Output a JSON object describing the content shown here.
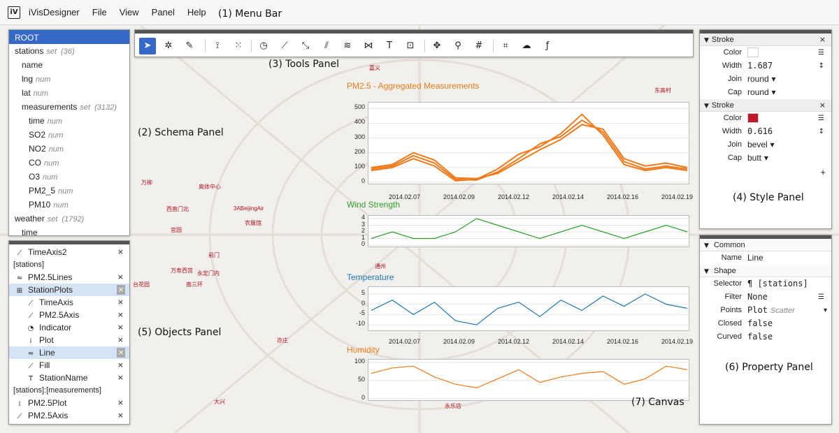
{
  "menubar": {
    "logo": "iV",
    "title": "iVisDesigner",
    "items": [
      "File",
      "View",
      "Panel",
      "Help"
    ]
  },
  "annotations": {
    "menu_bar": "(1) Menu Bar",
    "schema_panel": "(2) Schema Panel",
    "tools_panel": "(3) Tools Panel",
    "style_panel": "(4) Style Panel",
    "objects_panel": "(5) Objects Panel",
    "property_panel": "(6) Property Panel",
    "canvas": "(7) Canvas"
  },
  "schema": {
    "root": "ROOT",
    "rows": [
      {
        "name": "stations",
        "type": "set",
        "count": "(36)",
        "depth": 0
      },
      {
        "name": "name",
        "type": "",
        "count": "",
        "depth": 1
      },
      {
        "name": "lng",
        "type": "num",
        "count": "",
        "depth": 1
      },
      {
        "name": "lat",
        "type": "num",
        "count": "",
        "depth": 1
      },
      {
        "name": "measurements",
        "type": "set",
        "count": "(3132)",
        "depth": 1
      },
      {
        "name": "time",
        "type": "num",
        "count": "",
        "depth": 2
      },
      {
        "name": "SO2",
        "type": "num",
        "count": "",
        "depth": 2
      },
      {
        "name": "NO2",
        "type": "num",
        "count": "",
        "depth": 2
      },
      {
        "name": "CO",
        "type": "num",
        "count": "",
        "depth": 2
      },
      {
        "name": "O3",
        "type": "num",
        "count": "",
        "depth": 2
      },
      {
        "name": "PM2_5",
        "type": "num",
        "count": "",
        "depth": 2
      },
      {
        "name": "PM10",
        "type": "num",
        "count": "",
        "depth": 2
      },
      {
        "name": "weather",
        "type": "set",
        "count": "(1792)",
        "depth": 0
      },
      {
        "name": "time",
        "type": "",
        "count": "",
        "depth": 1
      }
    ]
  },
  "objects": {
    "items": [
      {
        "kind": "row",
        "icon": "axis-icon",
        "glyph": "⟋",
        "label": "TimeAxis2",
        "depth": 1,
        "selected": false
      },
      {
        "kind": "group",
        "label": "[stations]"
      },
      {
        "kind": "row",
        "icon": "line-icon",
        "glyph": "≈",
        "label": "PM2.5Lines",
        "depth": 1,
        "selected": false
      },
      {
        "kind": "row",
        "icon": "plot-group-icon",
        "glyph": "⊞",
        "label": "StationPlots",
        "depth": 1,
        "selected": true
      },
      {
        "kind": "row",
        "icon": "axis-icon",
        "glyph": "⟋",
        "label": "TimeAxis",
        "depth": 2,
        "selected": false
      },
      {
        "kind": "row",
        "icon": "axis-icon",
        "glyph": "⟋",
        "label": "PM2.5Axis",
        "depth": 2,
        "selected": false
      },
      {
        "kind": "row",
        "icon": "indicator-icon",
        "glyph": "◔",
        "label": "Indicator",
        "depth": 2,
        "selected": false
      },
      {
        "kind": "row",
        "icon": "plot-icon",
        "glyph": "⁞",
        "label": "Plot",
        "depth": 2,
        "selected": false
      },
      {
        "kind": "row",
        "icon": "line-icon",
        "glyph": "≈",
        "label": "Line",
        "depth": 2,
        "selected": true
      },
      {
        "kind": "row",
        "icon": "fill-icon",
        "glyph": "⟋",
        "label": "Fill",
        "depth": 2,
        "selected": false
      },
      {
        "kind": "row",
        "icon": "text-icon",
        "glyph": "T",
        "label": "StationName",
        "depth": 2,
        "selected": false
      },
      {
        "kind": "group",
        "label": "[stations]:[measurements]"
      },
      {
        "kind": "row",
        "icon": "plot-icon",
        "glyph": "⁞",
        "label": "PM2.5Plot",
        "depth": 1,
        "selected": false
      },
      {
        "kind": "row",
        "icon": "axis-icon",
        "glyph": "⟋",
        "label": "PM2.5Axis",
        "depth": 1,
        "selected": false
      }
    ],
    "close_glyph": "×"
  },
  "tools": [
    {
      "name": "select-tool",
      "icon": "cursor-icon",
      "glyph": "➤",
      "active": true
    },
    {
      "name": "move-element-tool",
      "icon": "magic-wand-icon",
      "glyph": "✲",
      "active": false
    },
    {
      "name": "brush-tool",
      "icon": "brush-icon",
      "glyph": "✎",
      "active": false
    },
    {
      "name": "axis-tool",
      "icon": "axis-icon",
      "glyph": "⟟",
      "active": false
    },
    {
      "name": "scatter-tool",
      "icon": "scatter-icon",
      "glyph": "⁙",
      "active": false
    },
    {
      "name": "gauge-tool",
      "icon": "gauge-icon",
      "glyph": "◷",
      "active": false
    },
    {
      "name": "line-tool",
      "icon": "line-segment-icon",
      "glyph": "⟋",
      "active": false
    },
    {
      "name": "polyline-tool",
      "icon": "polyline-icon",
      "glyph": "⤡",
      "active": false
    },
    {
      "name": "bar-tool",
      "icon": "bar-icon",
      "glyph": "⫽",
      "active": false
    },
    {
      "name": "curve-tool",
      "icon": "curve-icon",
      "glyph": "≋",
      "active": false
    },
    {
      "name": "area-tool",
      "icon": "area-icon",
      "glyph": "⋈",
      "active": false
    },
    {
      "name": "text-tool",
      "icon": "text-icon",
      "glyph": "T",
      "active": false
    },
    {
      "name": "component-tool",
      "icon": "component-icon",
      "glyph": "⊡",
      "active": false
    },
    {
      "name": "pan-tool",
      "icon": "move-icon",
      "glyph": "✥",
      "active": false
    },
    {
      "name": "zoom-tool",
      "icon": "search-icon",
      "glyph": "⚲",
      "active": false
    },
    {
      "name": "grid-tool",
      "icon": "grid-icon",
      "glyph": "#",
      "active": false
    },
    {
      "name": "layout-tool",
      "icon": "layout-icon",
      "glyph": "⌗",
      "active": false
    },
    {
      "name": "map-tool",
      "icon": "map-icon",
      "glyph": "☁",
      "active": false
    },
    {
      "name": "expression-tool",
      "icon": "function-icon",
      "glyph": "ƒ",
      "active": false
    }
  ],
  "style_panel": {
    "sections": [
      {
        "title": "Stroke",
        "color": "#ffffff",
        "width": "1.687",
        "join": "round",
        "cap": "round"
      },
      {
        "title": "Stroke",
        "color": "#c0172b",
        "width": "0.616",
        "join": "bevel",
        "cap": "butt"
      }
    ],
    "labels": {
      "color": "Color",
      "width": "Width",
      "join": "Join",
      "cap": "Cap"
    },
    "add_glyph": "+"
  },
  "property_panel": {
    "common_title": "Common",
    "name_label": "Name",
    "name_value": "Line",
    "shape_title": "Shape",
    "rows": [
      {
        "label": "Selector",
        "value": "¶ [stations]",
        "hint": ""
      },
      {
        "label": "Filter",
        "value": "None",
        "hint": ""
      },
      {
        "label": "Points",
        "value": "Plot",
        "hint": "Scatter"
      },
      {
        "label": "Closed",
        "value": "false",
        "hint": ""
      },
      {
        "label": "Curved",
        "value": "false",
        "hint": ""
      }
    ]
  },
  "canvas": {
    "dates": [
      "2014.02.07",
      "2014.02.09",
      "2014.02.12",
      "2014.02.14",
      "2014.02.16",
      "2014.02.19"
    ],
    "map_labels": [
      "嘉义",
      "东高村",
      "万柳",
      "奥体中心",
      "西直门北",
      "3ABeijingAir",
      "农展馆",
      "官园",
      "前门",
      "万寿西宫",
      "永定门内",
      "南三环",
      "台花园",
      "通州",
      "亦庄",
      "大兴",
      "永乐店"
    ]
  },
  "chart_data": [
    {
      "type": "line",
      "title": "PM2.5 - Aggregated Measurements",
      "color": "#f07a1a",
      "ylim": [
        0,
        520
      ],
      "yticks": [
        0,
        100,
        200,
        300,
        400,
        500
      ],
      "x": [
        "2014.02.05",
        "2014.02.06",
        "2014.02.07",
        "2014.02.08",
        "2014.02.09",
        "2014.02.10",
        "2014.02.11",
        "2014.02.12",
        "2014.02.13",
        "2014.02.14",
        "2014.02.15",
        "2014.02.16",
        "2014.02.17",
        "2014.02.18",
        "2014.02.19",
        "2014.02.20"
      ],
      "series": [
        {
          "values": [
            90,
            110,
            180,
            130,
            20,
            15,
            70,
            160,
            260,
            310,
            420,
            340,
            140,
            90,
            110,
            90
          ]
        },
        {
          "values": [
            80,
            100,
            160,
            110,
            10,
            20,
            90,
            190,
            240,
            330,
            460,
            320,
            120,
            80,
            100,
            80
          ]
        },
        {
          "values": [
            100,
            120,
            200,
            150,
            30,
            25,
            60,
            140,
            220,
            290,
            390,
            360,
            160,
            110,
            130,
            100
          ]
        }
      ]
    },
    {
      "type": "line",
      "title": "Wind Strength",
      "color": "#2ca02c",
      "ylim": [
        0,
        4
      ],
      "yticks": [
        0,
        1,
        2,
        3,
        4
      ],
      "x": [
        "2014.02.05",
        "2014.02.06",
        "2014.02.07",
        "2014.02.08",
        "2014.02.09",
        "2014.02.10",
        "2014.02.11",
        "2014.02.12",
        "2014.02.13",
        "2014.02.14",
        "2014.02.15",
        "2014.02.16",
        "2014.02.17",
        "2014.02.18",
        "2014.02.19",
        "2014.02.20"
      ],
      "series": [
        {
          "values": [
            1,
            2,
            1,
            1,
            2,
            4,
            3,
            2,
            1,
            2,
            3,
            2,
            1,
            2,
            3,
            2
          ]
        }
      ]
    },
    {
      "type": "line",
      "title": "Temperature",
      "color": "#1f77b4",
      "ylim": [
        -12,
        7
      ],
      "yticks": [
        -10,
        -5,
        0,
        5
      ],
      "x": [
        "2014.02.05",
        "2014.02.06",
        "2014.02.07",
        "2014.02.08",
        "2014.02.09",
        "2014.02.10",
        "2014.02.11",
        "2014.02.12",
        "2014.02.13",
        "2014.02.14",
        "2014.02.15",
        "2014.02.16",
        "2014.02.17",
        "2014.02.18",
        "2014.02.19",
        "2014.02.20"
      ],
      "series": [
        {
          "values": [
            -3,
            2,
            -5,
            1,
            -8,
            -10,
            -2,
            1,
            -6,
            2,
            -3,
            4,
            -1,
            5,
            0,
            -2
          ]
        }
      ]
    },
    {
      "type": "line",
      "title": "Humidity",
      "color": "#f07a1a",
      "ylim": [
        0,
        100
      ],
      "yticks": [
        0,
        50,
        100
      ],
      "x": [
        "2014.02.05",
        "2014.02.06",
        "2014.02.07",
        "2014.02.08",
        "2014.02.09",
        "2014.02.10",
        "2014.02.11",
        "2014.02.12",
        "2014.02.13",
        "2014.02.14",
        "2014.02.15",
        "2014.02.16",
        "2014.02.17",
        "2014.02.18",
        "2014.02.19",
        "2014.02.20"
      ],
      "series": [
        {
          "values": [
            70,
            85,
            90,
            60,
            40,
            30,
            55,
            80,
            45,
            60,
            70,
            75,
            40,
            55,
            90,
            80
          ]
        }
      ]
    }
  ]
}
